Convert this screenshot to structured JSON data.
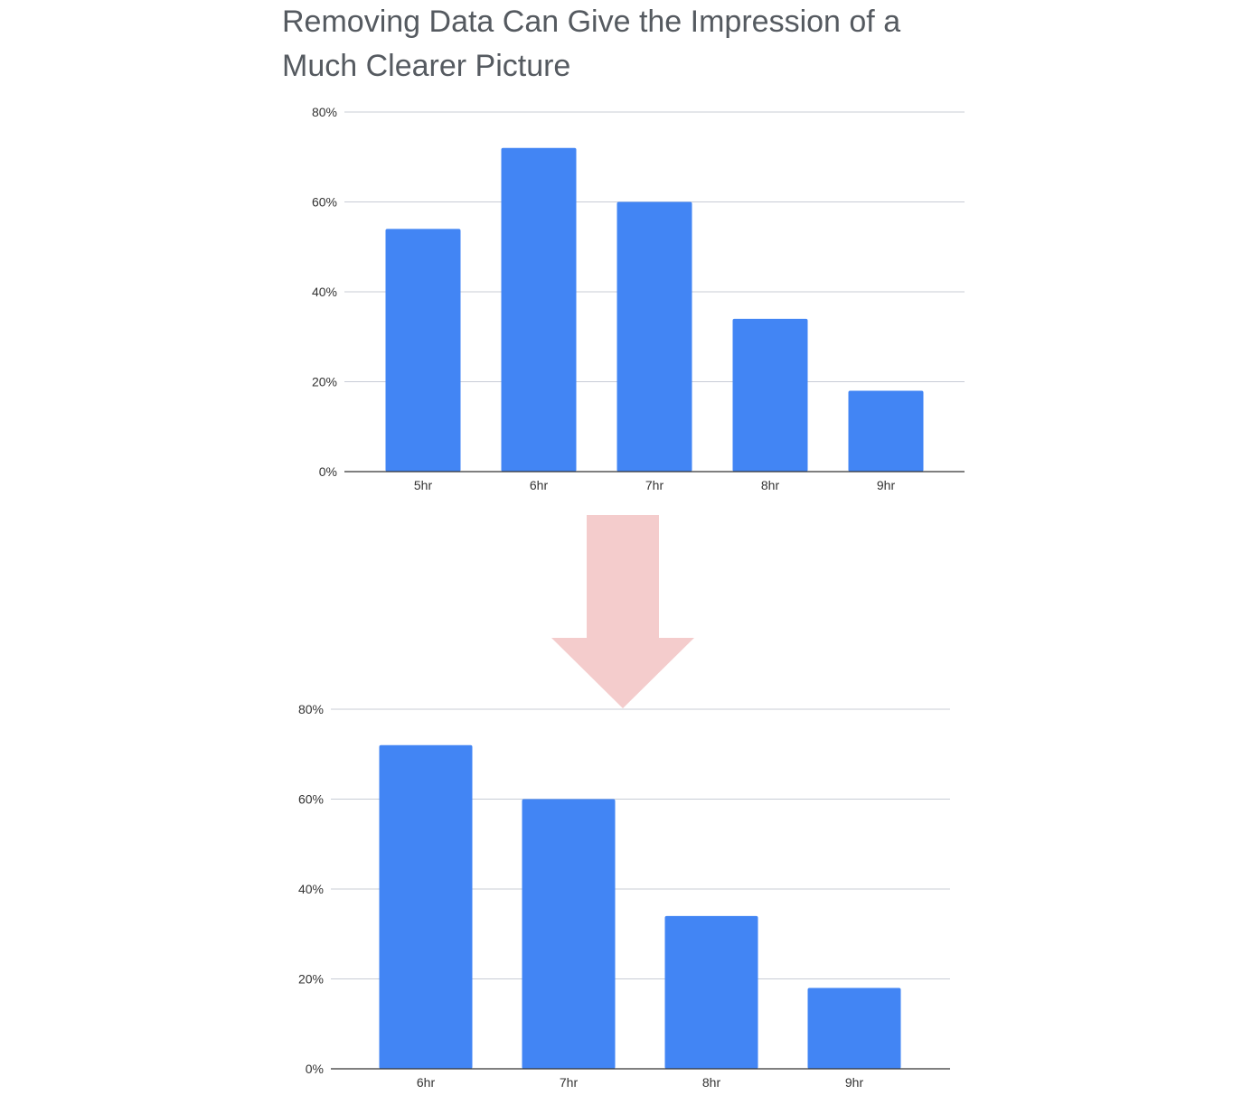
{
  "title_lines": [
    "Removing Data Can Give the Impression of a",
    "Much Clearer Picture"
  ],
  "colors": {
    "bar": "#4285f4",
    "arrow": "#f4cccc",
    "title": "#555a60",
    "grid": "#c8ccd6"
  },
  "arrow": {
    "icon": "down-arrow-icon"
  },
  "chart_data": [
    {
      "type": "bar",
      "categories": [
        "5hr",
        "6hr",
        "7hr",
        "8hr",
        "9hr"
      ],
      "values": [
        54,
        72,
        60,
        34,
        18
      ],
      "ylim": [
        0,
        80
      ],
      "yticks": [
        "0%",
        "20%",
        "40%",
        "60%",
        "80%"
      ],
      "grid": true,
      "xlabel": "",
      "ylabel": ""
    },
    {
      "type": "bar",
      "categories": [
        "6hr",
        "7hr",
        "8hr",
        "9hr"
      ],
      "values": [
        72,
        60,
        34,
        18
      ],
      "ylim": [
        0,
        80
      ],
      "yticks": [
        "0%",
        "20%",
        "40%",
        "60%",
        "80%"
      ],
      "grid": true,
      "xlabel": "",
      "ylabel": ""
    }
  ]
}
